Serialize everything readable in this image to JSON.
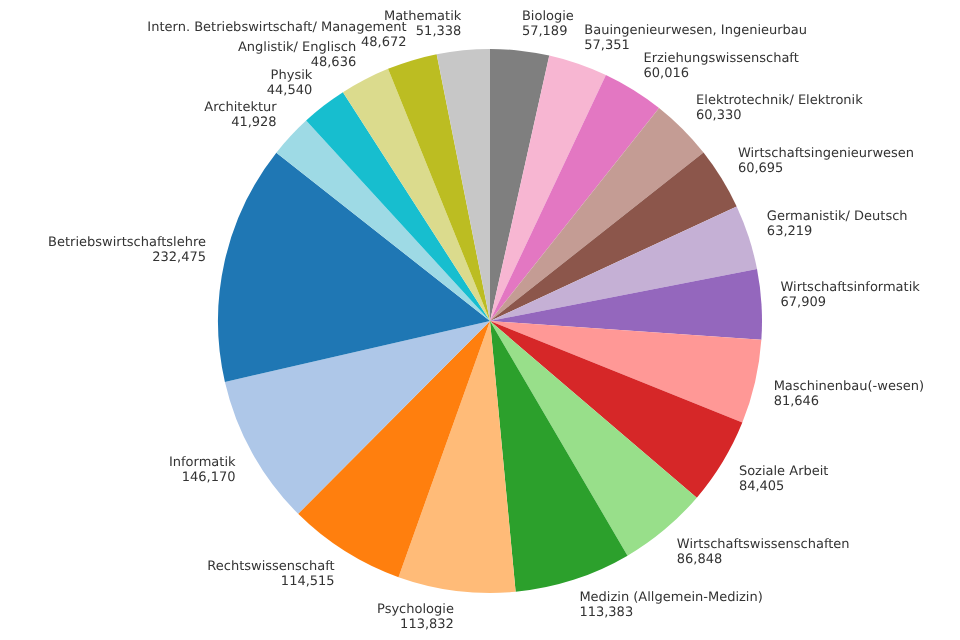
{
  "chart_data": {
    "type": "pie",
    "value_labels": [
      "57,189",
      "57,351",
      "60,016",
      "60,330",
      "60,695",
      "63,219",
      "67,909",
      "81,646",
      "84,405",
      "86,848",
      "113,383",
      "113,832",
      "114,515",
      "146,170",
      "232,475",
      "41,928",
      "44,540",
      "48,636",
      "48,672",
      "51,338"
    ],
    "categories": [
      "Biologie",
      "Bauingenieurwesen, Ingenieurbau",
      "Erziehungswissenschaft",
      "Elektrotechnik/ Elektronik",
      "Wirtschaftsingenieurwesen",
      "Germanistik/ Deutsch",
      "Wirtschaftsinformatik",
      "Maschinenbau(-wesen)",
      "Soziale Arbeit",
      "Wirtschaftswissenschaften",
      "Medizin (Allgemein-Medizin)",
      "Psychologie",
      "Rechtswissenschaft",
      "Informatik",
      "Betriebswirtschaftslehre",
      "Architektur",
      "Physik",
      "Anglistik/ Englisch",
      "Intern. Betriebswirtschaft/ Management",
      "Mathematik"
    ],
    "values": [
      57189,
      57351,
      60016,
      60330,
      60695,
      63219,
      67909,
      81646,
      84405,
      86848,
      113383,
      113832,
      114515,
      146170,
      232475,
      41928,
      44540,
      48636,
      48672,
      51338
    ],
    "colors": [
      "#7f7f7f",
      "#f7b6d2",
      "#e377c2",
      "#c49c94",
      "#8c564b",
      "#c5b0d5",
      "#9467bd",
      "#ff9896",
      "#d62728",
      "#98df8a",
      "#2ca02c",
      "#ffbb78",
      "#ff7f0e",
      "#aec7e8",
      "#1f77b4",
      "#9edae5",
      "#17becf",
      "#dbdb8d",
      "#bcbd22",
      "#c7c7c7"
    ]
  }
}
